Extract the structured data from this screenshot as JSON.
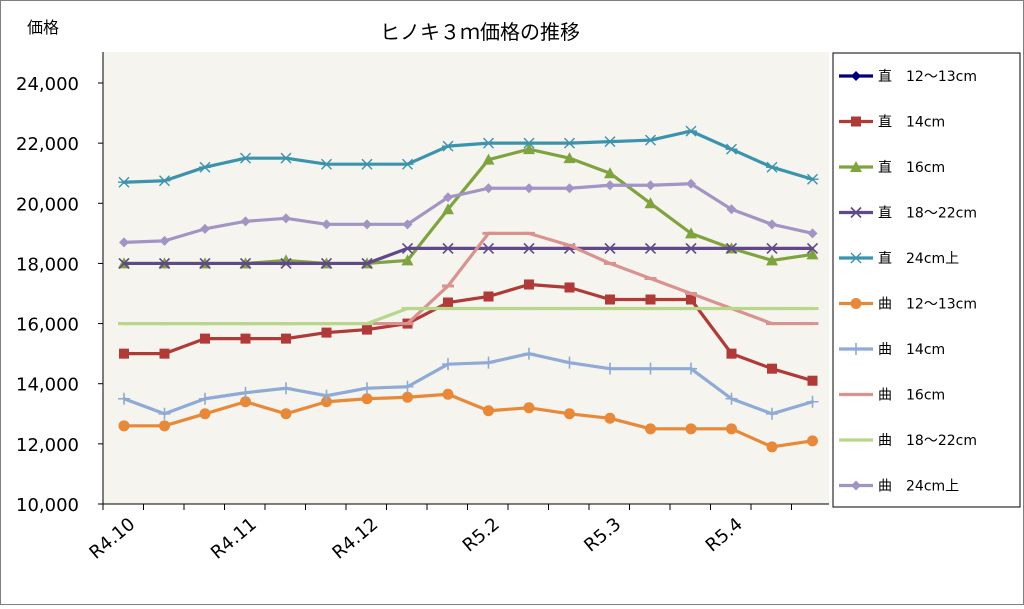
{
  "chart_data": {
    "type": "line",
    "title": "ヒノキ３ｍ価格の推移",
    "ylabel": "価格",
    "xlabel": "",
    "ylim": [
      10000,
      25000
    ],
    "yticks": [
      "10,000",
      "12,000",
      "14,000",
      "16,000",
      "18,000",
      "20,000",
      "22,000",
      "24,000"
    ],
    "ytick_values": [
      10000,
      12000,
      14000,
      16000,
      18000,
      20000,
      22000,
      24000
    ],
    "xtick_labels": [
      {
        "label": "R4.10",
        "index": 0
      },
      {
        "label": "R4.11",
        "index": 3
      },
      {
        "label": "R4.12",
        "index": 6
      },
      {
        "label": "R5.2",
        "index": 9
      },
      {
        "label": "R5.3",
        "index": 12
      },
      {
        "label": "R5.4",
        "index": 15
      }
    ],
    "grid": false,
    "legend_position": "right",
    "plot_background": "#f5f4ef",
    "series": [
      {
        "name": "直　12〜13cm",
        "color": "#00007f",
        "marker": "diamond",
        "values": [
          null,
          null,
          null,
          null,
          null,
          null,
          null,
          null,
          null,
          null,
          null,
          null,
          null,
          null,
          null,
          null,
          null,
          null
        ]
      },
      {
        "name": "直　14cm",
        "color": "#b03a37",
        "marker": "square",
        "values": [
          15000,
          15000,
          15500,
          15500,
          15500,
          15700,
          15800,
          16000,
          16700,
          16900,
          17300,
          17200,
          16800,
          16800,
          16800,
          15000,
          14500,
          14100
        ]
      },
      {
        "name": "直　16cm",
        "color": "#7fa33f",
        "marker": "triangle",
        "values": [
          18000,
          18000,
          18000,
          18000,
          18100,
          18000,
          18000,
          18100,
          19800,
          21450,
          21800,
          21500,
          21000,
          20000,
          19000,
          18500,
          18100,
          18300
        ]
      },
      {
        "name": "直　18〜22cm",
        "color": "#60488a",
        "marker": "x",
        "values": [
          18000,
          18000,
          18000,
          18000,
          18000,
          18000,
          18000,
          18500,
          18500,
          18500,
          18500,
          18500,
          18500,
          18500,
          18500,
          18500,
          18500,
          18500
        ]
      },
      {
        "name": "直　24cm上",
        "color": "#3c93ad",
        "marker": "star",
        "values": [
          20700,
          20750,
          21200,
          21500,
          21500,
          21300,
          21300,
          21300,
          21900,
          22000,
          22000,
          22000,
          22050,
          22100,
          22400,
          21800,
          21200,
          20800
        ]
      },
      {
        "name": "曲　12〜13cm",
        "color": "#e8893a",
        "marker": "circle",
        "values": [
          12600,
          12600,
          13000,
          13400,
          13000,
          13400,
          13500,
          13550,
          13650,
          13100,
          13200,
          13000,
          12850,
          12500,
          12500,
          12500,
          11900,
          12100
        ]
      },
      {
        "name": "曲　14cm",
        "color": "#8eaad5",
        "marker": "plus",
        "values": [
          13500,
          13000,
          13500,
          13700,
          13850,
          13600,
          13850,
          13900,
          14650,
          14700,
          15000,
          14700,
          14500,
          14500,
          14500,
          13500,
          13000,
          13400
        ]
      },
      {
        "name": "曲　16cm",
        "color": "#d9928f",
        "marker": "dash",
        "values": [
          16000,
          16000,
          16000,
          16000,
          16000,
          16000,
          16000,
          16000,
          17250,
          19000,
          19000,
          18600,
          18000,
          17500,
          17000,
          16500,
          16000,
          16000
        ]
      },
      {
        "name": "曲　18〜22cm",
        "color": "#b7d88b",
        "marker": "dash",
        "values": [
          16000,
          16000,
          16000,
          16000,
          16000,
          16000,
          16000,
          16500,
          16500,
          16500,
          16500,
          16500,
          16500,
          16500,
          16500,
          16500,
          16500,
          16500
        ]
      },
      {
        "name": "曲　24cm上",
        "color": "#a294c3",
        "marker": "diamond",
        "values": [
          18700,
          18750,
          19150,
          19400,
          19500,
          19300,
          19300,
          19300,
          20200,
          20500,
          20500,
          20500,
          20600,
          20600,
          20650,
          19800,
          19300,
          19000
        ]
      }
    ]
  }
}
